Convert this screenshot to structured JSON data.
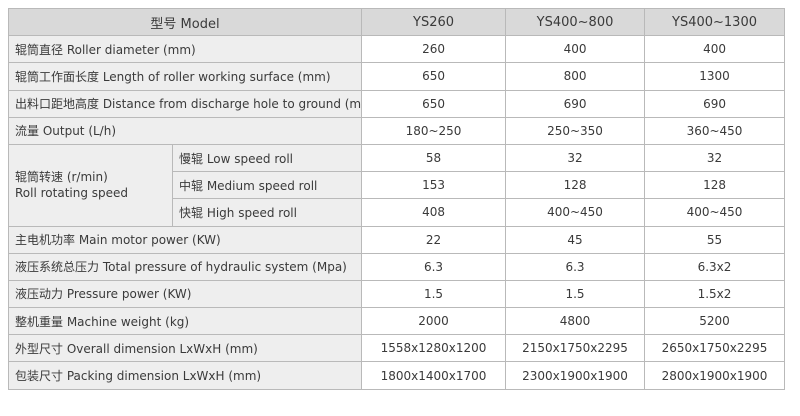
{
  "header": {
    "model_label": "型号 Model",
    "models": [
      "YS260",
      "YS400~800",
      "YS400~1300"
    ]
  },
  "rows": [
    {
      "label": "辊筒直径 Roller diameter (mm)",
      "values": [
        "260",
        "400",
        "400"
      ]
    },
    {
      "label": "辊筒工作面长度 Length of roller working surface (mm)",
      "values": [
        "650",
        "800",
        "1300"
      ]
    },
    {
      "label": "出料口距地高度 Distance from discharge hole to ground (mm)",
      "values": [
        "650",
        "690",
        "690"
      ]
    },
    {
      "label": "流量 Output (L/h)",
      "values": [
        "180~250",
        "250~350",
        "360~450"
      ]
    }
  ],
  "speed_group": {
    "label_cn": "辊筒转速 (r/min)",
    "label_en": "Roll rotating speed",
    "rows": [
      {
        "label": "慢辊 Low speed roll",
        "values": [
          "58",
          "32",
          "32"
        ]
      },
      {
        "label": "中辊 Medium speed roll",
        "values": [
          "153",
          "128",
          "128"
        ]
      },
      {
        "label": "快辊 High speed roll",
        "values": [
          "408",
          "400~450",
          "400~450"
        ]
      }
    ]
  },
  "rows_after": [
    {
      "label": "主电机功率 Main motor power (KW)",
      "values": [
        "22",
        "45",
        "55"
      ]
    },
    {
      "label": "液压系统总压力 Total pressure of hydraulic system (Mpa)",
      "values": [
        "6.3",
        "6.3",
        "6.3x2"
      ]
    },
    {
      "label": "液压动力 Pressure power (KW)",
      "values": [
        "1.5",
        "1.5",
        "1.5x2"
      ]
    },
    {
      "label": "整机重量 Machine weight (kg)",
      "values": [
        "2000",
        "4800",
        "5200"
      ]
    },
    {
      "label": "外型尺寸 Overall dimension LxWxH (mm)",
      "values": [
        "1558x1280x1200",
        "2150x1750x2295",
        "2650x1750x2295"
      ]
    },
    {
      "label": "包装尺寸 Packing dimension LxWxH (mm)",
      "values": [
        "1800x1400x1700",
        "2300x1900x1900",
        "2800x1900x1900"
      ]
    }
  ]
}
